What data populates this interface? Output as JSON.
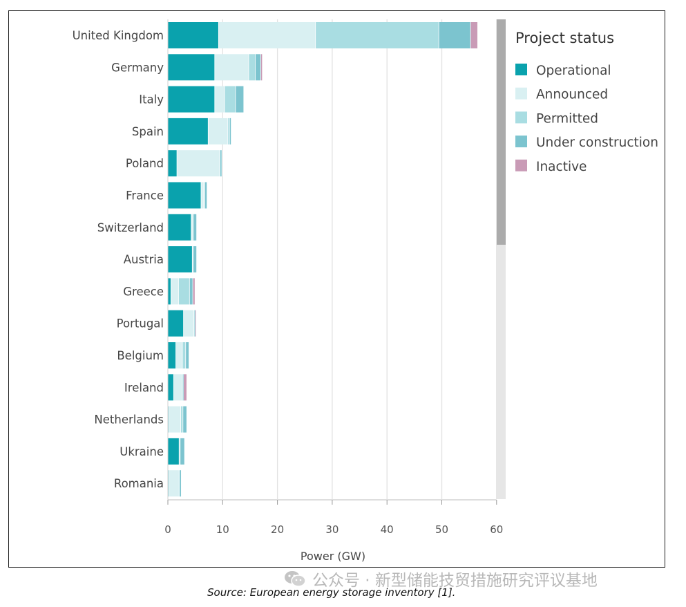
{
  "chart_data": {
    "type": "bar",
    "orientation": "horizontal",
    "stacked": true,
    "xlabel": "Power (GW)",
    "xlim": [
      0,
      60
    ],
    "xticks": [
      0,
      10,
      20,
      30,
      40,
      50,
      60
    ],
    "grid": true,
    "legend_title": "Project status",
    "legend_position": "top-right",
    "categories": [
      "United Kingdom",
      "Germany",
      "Italy",
      "Spain",
      "Poland",
      "France",
      "Switzerland",
      "Austria",
      "Greece",
      "Portugal",
      "Belgium",
      "Ireland",
      "Netherlands",
      "Ukraine",
      "Romania"
    ],
    "series": [
      {
        "name": "Operational",
        "color": "#0aa2ad",
        "values": [
          9.3,
          8.6,
          8.6,
          7.4,
          1.7,
          6.1,
          4.3,
          4.5,
          0.6,
          2.9,
          1.5,
          1.1,
          0.2,
          2.1,
          0.2
        ]
      },
      {
        "name": "Announced",
        "color": "#d9f0f2",
        "values": [
          17.7,
          6.2,
          1.8,
          3.6,
          7.8,
          0.5,
          0.3,
          0.1,
          1.4,
          1.9,
          1.2,
          1.6,
          2.2,
          0.1,
          1.9
        ]
      },
      {
        "name": "Permitted",
        "color": "#a9dde2",
        "values": [
          22.5,
          1.2,
          2.0,
          0.3,
          0.1,
          0.2,
          0.1,
          0.1,
          2.0,
          0.1,
          0.6,
          0.1,
          0.4,
          0.1,
          0.1
        ]
      },
      {
        "name": "Under construction",
        "color": "#7cc4cf",
        "values": [
          5.8,
          1.0,
          1.5,
          0.3,
          0.3,
          0.4,
          0.6,
          0.6,
          0.6,
          0.1,
          0.6,
          0.1,
          0.7,
          0.8,
          0.3
        ]
      },
      {
        "name": "Inactive",
        "color": "#c99bb6",
        "values": [
          1.3,
          0.3,
          0.0,
          0.0,
          0.0,
          0.0,
          0.0,
          0.0,
          0.4,
          0.2,
          0.0,
          0.6,
          0.0,
          0.0,
          0.0
        ]
      }
    ]
  },
  "caption": "Source: European energy storage inventory [1].",
  "watermark": "公众号 · 新型储能技贸措施研究评议基地"
}
